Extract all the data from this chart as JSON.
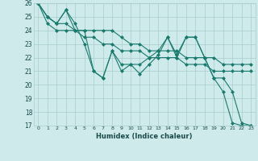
{
  "xlabel": "Humidex (Indice chaleur)",
  "background_color": "#ceeaea",
  "grid_color": "#aacccc",
  "line_color": "#1a7a6e",
  "xlim": [
    -0.5,
    23.5
  ],
  "ylim": [
    17,
    26
  ],
  "xticks": [
    0,
    1,
    2,
    3,
    4,
    5,
    6,
    7,
    8,
    9,
    10,
    11,
    12,
    13,
    14,
    15,
    16,
    17,
    18,
    19,
    20,
    21,
    22,
    23
  ],
  "yticks": [
    17,
    18,
    19,
    20,
    21,
    22,
    23,
    24,
    25,
    26
  ],
  "series": [
    {
      "x": [
        0,
        1,
        2,
        3,
        4,
        5,
        6,
        7,
        8,
        9,
        10,
        11,
        12,
        13,
        14,
        15,
        16,
        17,
        18,
        19,
        20,
        21,
        22,
        23
      ],
      "y": [
        26,
        25,
        24.5,
        25.5,
        24,
        24,
        21,
        20.5,
        22.5,
        21,
        21.5,
        20.8,
        21.5,
        22.2,
        23.5,
        22.2,
        23.5,
        23.5,
        22,
        20.5,
        19.5,
        17.2,
        17,
        17
      ]
    },
    {
      "x": [
        0,
        1,
        2,
        3,
        4,
        5,
        6,
        7,
        8,
        9,
        10,
        11,
        12,
        13,
        14,
        15,
        16,
        17,
        18,
        19,
        20,
        21,
        22,
        23
      ],
      "y": [
        26,
        24.5,
        24,
        24,
        24,
        24,
        24,
        24,
        24,
        23.5,
        23,
        23,
        22.5,
        22.5,
        22.5,
        22.5,
        22,
        22,
        22,
        22,
        21.5,
        21.5,
        21.5,
        21.5
      ]
    },
    {
      "x": [
        0,
        1,
        2,
        3,
        4,
        5,
        6,
        7,
        8,
        9,
        10,
        11,
        12,
        13,
        14,
        15,
        16,
        17,
        18,
        19,
        20,
        21,
        22,
        23
      ],
      "y": [
        26,
        25,
        24.5,
        24.5,
        24,
        23.5,
        23.5,
        23,
        23,
        22.5,
        22.5,
        22.5,
        22,
        22,
        22,
        22,
        21.5,
        21.5,
        21.5,
        21,
        21,
        21,
        21,
        21
      ]
    },
    {
      "x": [
        0,
        1,
        2,
        3,
        4,
        5,
        6,
        7,
        8,
        9,
        10,
        11,
        12,
        13,
        14,
        15,
        16,
        17,
        18,
        19,
        20,
        21,
        22,
        23
      ],
      "y": [
        26,
        25,
        24.5,
        25.5,
        24.5,
        23,
        21,
        20.5,
        22.5,
        21.5,
        21.5,
        21.5,
        22,
        22.5,
        23.5,
        22,
        23.5,
        23.5,
        22,
        20.5,
        20.5,
        19.5,
        17.2,
        17
      ]
    }
  ]
}
